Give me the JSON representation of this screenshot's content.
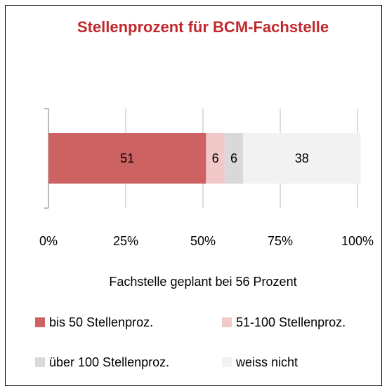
{
  "chart_data": {
    "type": "stacked-bar-horizontal",
    "title": "Stellenprozent für BCM-Fachstelle",
    "xlabel": "Fachstelle geplant bei 56 Prozent",
    "categories": [
      null
    ],
    "series": [
      {
        "name": "bis 50 Stellenproz.",
        "color": "#cd6262",
        "values": [
          51
        ]
      },
      {
        "name": "51-100 Stellenproz.",
        "color": "#f2c9c9",
        "values": [
          6
        ]
      },
      {
        "name": "über 100 Stellenproz.",
        "color": "#d9d9d9",
        "values": [
          6
        ]
      },
      {
        "name": "weiss nicht",
        "color": "#f2f2f2",
        "values": [
          38
        ]
      }
    ],
    "xlim": [
      0,
      100
    ],
    "xticks": [
      {
        "value": 0,
        "label": "0%"
      },
      {
        "value": 25,
        "label": "25%"
      },
      {
        "value": 50,
        "label": "50%"
      },
      {
        "value": 75,
        "label": "75%"
      },
      {
        "value": 100,
        "label": "100%"
      }
    ],
    "grid": true,
    "title_color": "#c0282d"
  }
}
